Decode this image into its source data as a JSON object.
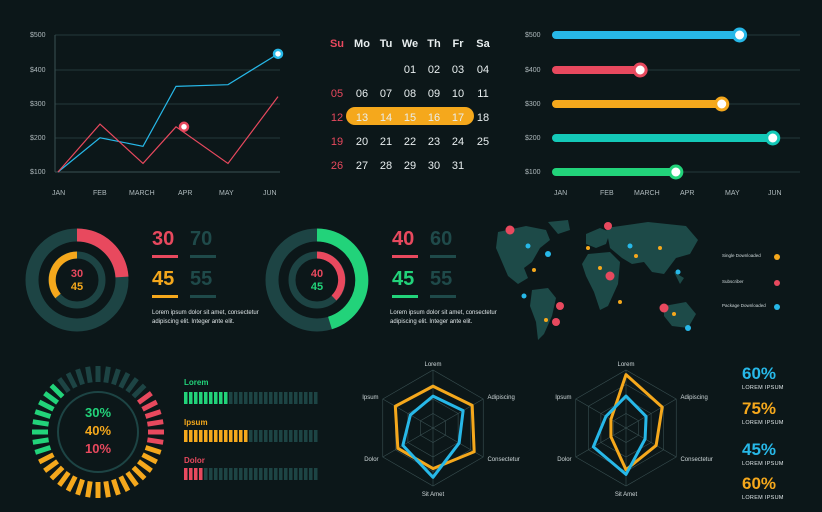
{
  "colors": {
    "bg": "#0c1719",
    "teal": "#1f4a4a",
    "red": "#e8495e",
    "cyan": "#27b8e8",
    "yellow": "#f5a81c",
    "green": "#22d37a",
    "aqua": "#14c9b8"
  },
  "line_chart": {
    "y_ticks": [
      "$500",
      "$400",
      "$300",
      "$200",
      "$100"
    ],
    "x_ticks": [
      "JAN",
      "FEB",
      "MARCH",
      "APR",
      "MAY",
      "JUN"
    ]
  },
  "calendar": {
    "headers": [
      "Su",
      "Mo",
      "Tu",
      "We",
      "Th",
      "Fr",
      "Sa"
    ],
    "rows": [
      [
        "",
        "",
        "",
        "01",
        "02",
        "03",
        "04"
      ],
      [
        "05",
        "06",
        "07",
        "08",
        "09",
        "10",
        "11"
      ],
      [
        "12",
        "13",
        "14",
        "15",
        "16",
        "17",
        "18"
      ],
      [
        "19",
        "20",
        "21",
        "22",
        "23",
        "24",
        "25"
      ],
      [
        "26",
        "27",
        "28",
        "29",
        "30",
        "31",
        ""
      ]
    ]
  },
  "bar_chart": {
    "y_ticks": [
      "$500",
      "$400",
      "$300",
      "$200",
      "$100"
    ],
    "x_ticks": [
      "JAN",
      "FEB",
      "MARCH",
      "APR",
      "MAY",
      "JUN"
    ]
  },
  "donut1": {
    "center_top": "30",
    "center_bottom": "45",
    "stat_a": "30",
    "stat_b": "70",
    "stat_c": "45",
    "stat_d": "55",
    "text": "Lorem ipsum dolor sit amet, consectetur adipiscing elit. Integer ante elit."
  },
  "donut2": {
    "center_top": "40",
    "center_bottom": "45",
    "stat_a": "40",
    "stat_b": "60",
    "stat_c": "45",
    "stat_d": "55",
    "text": "Lorem ipsum dolor sit amet, consectetur adipiscing elit. Integer ante elit."
  },
  "map_legend": [
    "Single Downloaded",
    "Subscriber",
    "Package Downloaded"
  ],
  "radial": {
    "v1": "30%",
    "v2": "40%",
    "v3": "10%"
  },
  "hbars": [
    {
      "label": "Lorem"
    },
    {
      "label": "Ipsum"
    },
    {
      "label": "Dolor"
    }
  ],
  "radar_labels": [
    "Lorem",
    "Adipiscing",
    "Consectetur",
    "Sit Amet",
    "Dolor",
    "Ipsum"
  ],
  "side_stats": [
    {
      "value": "60%",
      "label": "LOREM IPSUM"
    },
    {
      "value": "75%",
      "label": "LOREM IPSUM"
    },
    {
      "value": "45%",
      "label": "LOREM IPSUM"
    },
    {
      "value": "60%",
      "label": "LOREM IPSUM"
    }
  ],
  "chart_data": [
    {
      "type": "line",
      "categories": [
        "JAN",
        "FEB",
        "MARCH",
        "APR",
        "MAY",
        "JUN"
      ],
      "ylim": [
        100,
        500
      ],
      "series": [
        {
          "values": [
            100,
            200,
            175,
            350,
            355,
            445
          ]
        },
        {
          "values": [
            100,
            240,
            125,
            232,
            125,
            320
          ]
        }
      ]
    },
    {
      "type": "bar",
      "orientation": "horizontal",
      "categories": [
        "$500",
        "$400",
        "$300",
        "$200",
        "$100"
      ],
      "xlim": [
        "JAN",
        "JUN"
      ],
      "values": [
        0.72,
        0.33,
        0.65,
        0.85,
        0.47
      ]
    }
  ]
}
